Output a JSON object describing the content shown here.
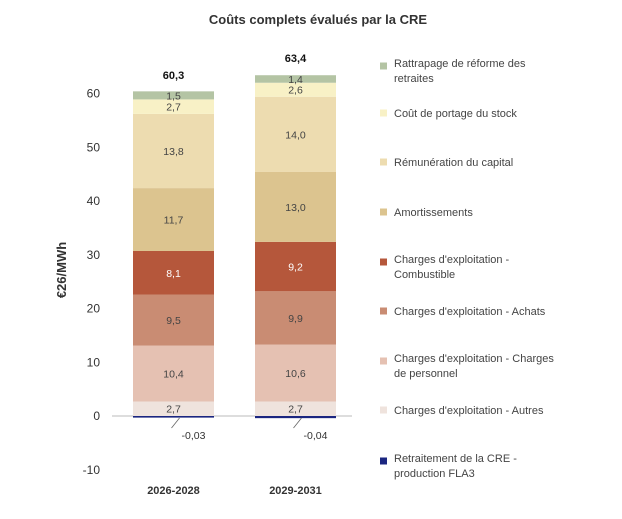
{
  "chart_data": {
    "type": "bar",
    "stacked": true,
    "title": "Coûts complets évalués par la CRE",
    "ylabel": "€26/MWh",
    "xlabel": "",
    "ylim": [
      -10,
      60
    ],
    "yticks": [
      -10,
      0,
      10,
      20,
      30,
      40,
      50,
      60
    ],
    "ytick_labels": [
      "-10",
      "0",
      "10",
      "20",
      "30",
      "40",
      "50",
      "60"
    ],
    "categories": [
      "2026-2028",
      "2029-2031"
    ],
    "totals": [
      60.3,
      63.4
    ],
    "total_labels": [
      "60,3",
      "63,4"
    ],
    "series": [
      {
        "name": "Charges d'exploitation - Autres",
        "color": "#efe3dd",
        "values": [
          2.7,
          2.7
        ],
        "labels": [
          "2,7",
          "2,7"
        ],
        "light_text": false
      },
      {
        "name": "Charges d'exploitation - Charges de personnel",
        "color": "#e5c1b2",
        "values": [
          10.4,
          10.6
        ],
        "labels": [
          "10,4",
          "10,6"
        ],
        "light_text": false
      },
      {
        "name": "Charges d'exploitation - Achats",
        "color": "#c98c73",
        "values": [
          9.5,
          9.9
        ],
        "labels": [
          "9,5",
          "9,9"
        ],
        "light_text": false
      },
      {
        "name": "Charges d'exploitation - Combustible",
        "color": "#b5573b",
        "values": [
          8.1,
          9.2
        ],
        "labels": [
          "8,1",
          "9,2"
        ],
        "light_text": true
      },
      {
        "name": "Amortissements",
        "color": "#dcc48f",
        "values": [
          11.7,
          13.0
        ],
        "labels": [
          "11,7",
          "13,0"
        ],
        "light_text": false
      },
      {
        "name": "Rémunération du capital",
        "color": "#eddcb0",
        "values": [
          13.8,
          14.0
        ],
        "labels": [
          "13,8",
          "14,0"
        ],
        "light_text": false
      },
      {
        "name": "Coût de portage du stock",
        "color": "#f8f1c6",
        "values": [
          2.7,
          2.6
        ],
        "labels": [
          "2,7",
          "2,6"
        ],
        "light_text": false
      },
      {
        "name": "Rattrapage de réforme des retraites",
        "color": "#b4c4a4",
        "values": [
          1.5,
          1.4
        ],
        "labels": [
          "1,5",
          "1,4"
        ],
        "light_text": false
      },
      {
        "name": "Retraitement de la CRE - production FLA3",
        "color": "#1b2680",
        "values": [
          -0.03,
          -0.04
        ],
        "labels": [
          "-0,03",
          "-0,04"
        ],
        "light_text": false
      }
    ],
    "legend_position": "right",
    "legend": [
      {
        "line1": "Rattrapage de réforme des",
        "line2": "retraites",
        "color": "#b4c4a4"
      },
      {
        "line1": "Coût de portage du stock",
        "line2": "",
        "color": "#f8f1c6"
      },
      {
        "line1": "Rémunération du capital",
        "line2": "",
        "color": "#eddcb0"
      },
      {
        "line1": "Amortissements",
        "line2": "",
        "color": "#dcc48f"
      },
      {
        "line1": "Charges d'exploitation -",
        "line2": "Combustible",
        "color": "#b5573b"
      },
      {
        "line1": "Charges d'exploitation - Achats",
        "line2": "",
        "color": "#c98c73"
      },
      {
        "line1": "Charges d'exploitation - Charges",
        "line2": "de personnel",
        "color": "#e5c1b2"
      },
      {
        "line1": "Charges d'exploitation - Autres",
        "line2": "",
        "color": "#efe3dd"
      },
      {
        "line1": "Retraitement de la CRE -",
        "line2": "production FLA3",
        "color": "#1b2680"
      }
    ]
  }
}
